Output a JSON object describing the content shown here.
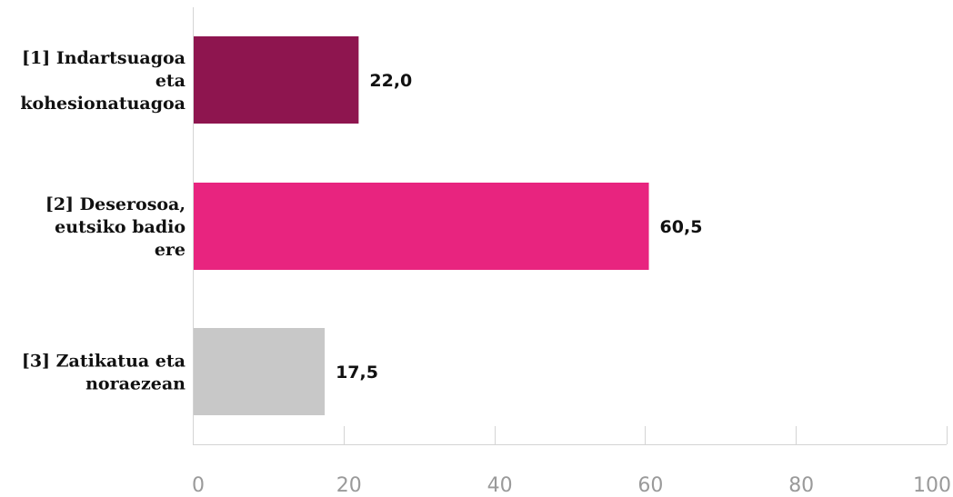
{
  "chart_data": {
    "type": "bar",
    "orientation": "horizontal",
    "categories": [
      [
        "[1] Indartsuagoa",
        "eta",
        "kohesionatuagoa"
      ],
      [
        "[2] Deserosoa,",
        "eutsiko badio",
        "ere"
      ],
      [
        "[3] Zatikatua eta",
        "noraezean"
      ]
    ],
    "values": [
      22.0,
      60.5,
      17.5
    ],
    "value_labels": [
      "22,0",
      "60,5",
      "17,5"
    ],
    "colors": [
      "#8e154f",
      "#e8247f",
      "#c8c8c8"
    ],
    "xlim": [
      0,
      100
    ],
    "xticks": [
      0,
      20,
      40,
      60,
      80,
      100
    ],
    "xtick_labels": [
      "0",
      "20",
      "40",
      "60",
      "80",
      "100"
    ],
    "grid": false,
    "legend": "none"
  }
}
